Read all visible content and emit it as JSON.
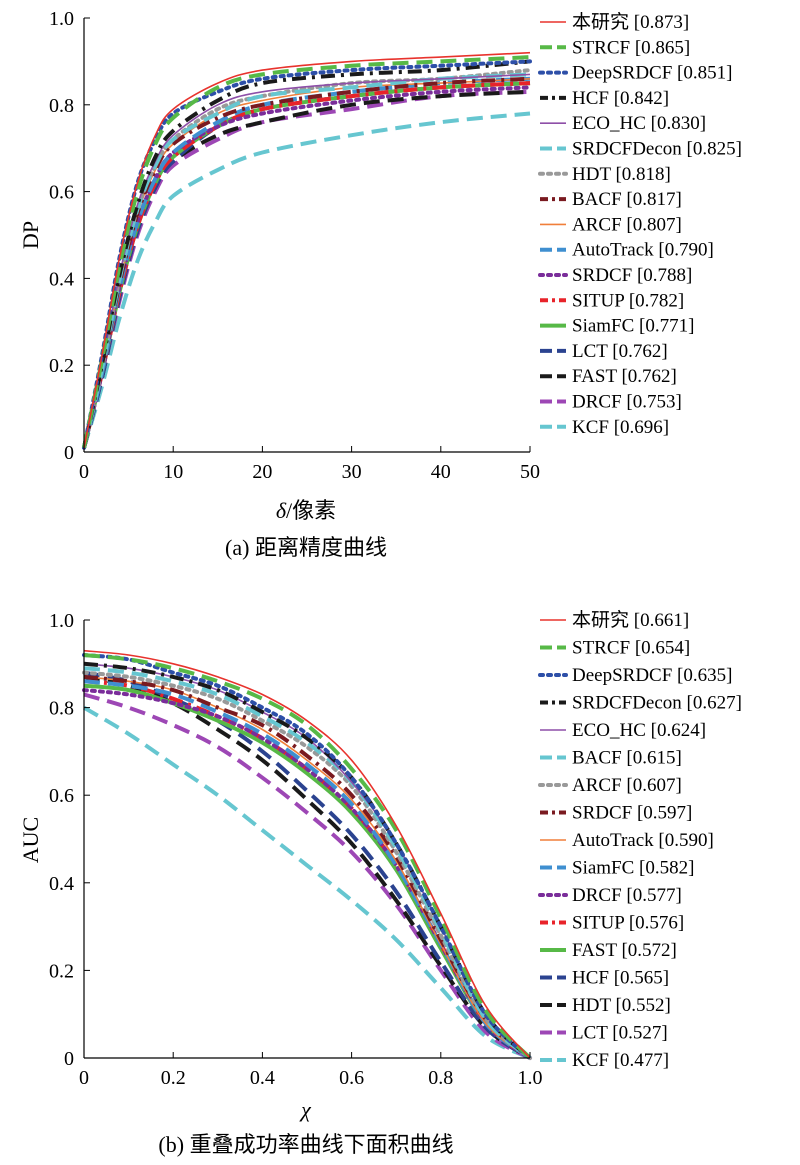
{
  "chart_data": [
    {
      "type": "line",
      "caption": "(a) 距离精度曲线",
      "ylabel": "DP",
      "xlabel_symbol": "δ",
      "xlabel_rest": "/像素",
      "xlim": [
        0,
        50
      ],
      "ylim": [
        0,
        1
      ],
      "xticks": [
        0,
        10,
        20,
        30,
        40,
        50
      ],
      "yticks": [
        0,
        0.2,
        0.4,
        0.6,
        0.8,
        1.0
      ],
      "xtick_labels": [
        "0",
        "10",
        "20",
        "30",
        "40",
        "50"
      ],
      "ytick_labels": [
        "0",
        "0.2",
        "0.4",
        "0.6",
        "0.8",
        "1.0"
      ],
      "x": [
        0,
        2,
        4,
        6,
        8,
        10,
        15,
        20,
        30,
        40,
        50
      ],
      "legend_position": "right",
      "series": [
        {
          "name": "本研究 [0.873]",
          "color": "#e8332d",
          "style": "solid",
          "y": [
            0.01,
            0.22,
            0.45,
            0.62,
            0.73,
            0.79,
            0.85,
            0.88,
            0.9,
            0.91,
            0.92
          ]
        },
        {
          "name": "STRCF [0.865]",
          "color": "#57b947",
          "style": "dashed",
          "y": [
            0.01,
            0.21,
            0.43,
            0.6,
            0.71,
            0.77,
            0.84,
            0.87,
            0.89,
            0.9,
            0.91
          ]
        },
        {
          "name": "DeepSRDCF [0.851]",
          "color": "#2d4fa8",
          "style": "dotted",
          "y": [
            0.01,
            0.22,
            0.45,
            0.62,
            0.72,
            0.78,
            0.83,
            0.86,
            0.88,
            0.89,
            0.9
          ]
        },
        {
          "name": "HCF [0.842]",
          "color": "#1a1a1a",
          "style": "dashdot",
          "y": [
            0.01,
            0.2,
            0.41,
            0.57,
            0.68,
            0.74,
            0.81,
            0.85,
            0.87,
            0.88,
            0.9
          ]
        },
        {
          "name": "ECO_HC [0.830]",
          "color": "#8e4fa8",
          "style": "solid",
          "y": [
            0.01,
            0.2,
            0.41,
            0.57,
            0.67,
            0.73,
            0.8,
            0.83,
            0.85,
            0.86,
            0.87
          ]
        },
        {
          "name": "SRDCFDecon [0.825]",
          "color": "#66c6d0",
          "style": "dashed",
          "y": [
            0.01,
            0.19,
            0.4,
            0.56,
            0.66,
            0.72,
            0.78,
            0.82,
            0.84,
            0.86,
            0.87
          ]
        },
        {
          "name": "HDT [0.818]",
          "color": "#999999",
          "style": "dotted",
          "y": [
            0.01,
            0.19,
            0.4,
            0.56,
            0.66,
            0.72,
            0.79,
            0.82,
            0.85,
            0.86,
            0.88
          ]
        },
        {
          "name": "BACF [0.817]",
          "color": "#7a1a20",
          "style": "dashdot",
          "y": [
            0.01,
            0.19,
            0.39,
            0.55,
            0.65,
            0.71,
            0.77,
            0.8,
            0.83,
            0.85,
            0.86
          ]
        },
        {
          "name": "ARCF [0.807]",
          "color": "#f07f3a",
          "style": "solid",
          "y": [
            0.01,
            0.19,
            0.39,
            0.55,
            0.65,
            0.71,
            0.78,
            0.81,
            0.84,
            0.85,
            0.86
          ]
        },
        {
          "name": "AutoTrack [0.790]",
          "color": "#3f8fd0",
          "style": "dashed",
          "y": [
            0.01,
            0.18,
            0.38,
            0.53,
            0.63,
            0.69,
            0.76,
            0.8,
            0.83,
            0.85,
            0.86
          ]
        },
        {
          "name": "SRDCF [0.788]",
          "color": "#7a2d9a",
          "style": "dotted",
          "y": [
            0.01,
            0.18,
            0.38,
            0.53,
            0.63,
            0.69,
            0.75,
            0.78,
            0.81,
            0.83,
            0.84
          ]
        },
        {
          "name": "SITUP [0.782]",
          "color": "#e8232a",
          "style": "dashdot",
          "y": [
            0.01,
            0.18,
            0.37,
            0.52,
            0.62,
            0.68,
            0.75,
            0.79,
            0.82,
            0.84,
            0.85
          ]
        },
        {
          "name": "SiamFC [0.771]",
          "color": "#57b947",
          "style": "solid-thick",
          "y": [
            0.01,
            0.18,
            0.37,
            0.52,
            0.62,
            0.68,
            0.75,
            0.79,
            0.82,
            0.84,
            0.85
          ]
        },
        {
          "name": "LCT [0.762]",
          "color": "#2b4390",
          "style": "dashed",
          "y": [
            0.01,
            0.17,
            0.36,
            0.51,
            0.61,
            0.67,
            0.75,
            0.79,
            0.82,
            0.84,
            0.85
          ]
        },
        {
          "name": "FAST [0.762]",
          "color": "#1a1a1a",
          "style": "dashed",
          "y": [
            0.01,
            0.17,
            0.36,
            0.51,
            0.61,
            0.67,
            0.73,
            0.76,
            0.8,
            0.82,
            0.83
          ]
        },
        {
          "name": "DRCF [0.753]",
          "color": "#9d47b5",
          "style": "dashed",
          "y": [
            0.01,
            0.17,
            0.35,
            0.5,
            0.6,
            0.66,
            0.72,
            0.76,
            0.79,
            0.82,
            0.83
          ]
        },
        {
          "name": "KCF [0.696]",
          "color": "#66c6d0",
          "style": "dashed",
          "y": [
            0.01,
            0.15,
            0.31,
            0.44,
            0.53,
            0.59,
            0.65,
            0.69,
            0.73,
            0.76,
            0.78
          ]
        }
      ]
    },
    {
      "type": "line",
      "caption": "(b) 重叠成功率曲线下面积曲线",
      "ylabel": "AUC",
      "xlabel_symbol": "χ",
      "xlabel_rest": "",
      "xlim": [
        0,
        1
      ],
      "ylim": [
        0,
        1
      ],
      "xticks": [
        0,
        0.2,
        0.4,
        0.6,
        0.8,
        1.0
      ],
      "yticks": [
        0,
        0.2,
        0.4,
        0.6,
        0.8,
        1.0
      ],
      "xtick_labels": [
        "0",
        "0.2",
        "0.4",
        "0.6",
        "0.8",
        "1.0"
      ],
      "ytick_labels": [
        "0",
        "0.2",
        "0.4",
        "0.6",
        "0.8",
        "1.0"
      ],
      "x": [
        0,
        0.1,
        0.2,
        0.3,
        0.4,
        0.5,
        0.6,
        0.7,
        0.8,
        0.9,
        1.0
      ],
      "legend_position": "right",
      "series": [
        {
          "name": "本研究 [0.661]",
          "color": "#e8332d",
          "style": "solid",
          "y": [
            0.93,
            0.92,
            0.9,
            0.87,
            0.83,
            0.77,
            0.68,
            0.53,
            0.33,
            0.12,
            0.0
          ]
        },
        {
          "name": "STRCF [0.654]",
          "color": "#57b947",
          "style": "dashed",
          "y": [
            0.92,
            0.91,
            0.89,
            0.86,
            0.82,
            0.76,
            0.66,
            0.52,
            0.32,
            0.11,
            0.0
          ]
        },
        {
          "name": "DeepSRDCF [0.635]",
          "color": "#2d4fa8",
          "style": "dotted",
          "y": [
            0.92,
            0.91,
            0.88,
            0.85,
            0.8,
            0.74,
            0.64,
            0.49,
            0.3,
            0.1,
            0.0
          ]
        },
        {
          "name": "SRDCFDecon [0.627]",
          "color": "#1a1a1a",
          "style": "dashdot",
          "y": [
            0.9,
            0.89,
            0.87,
            0.84,
            0.79,
            0.73,
            0.64,
            0.49,
            0.3,
            0.1,
            0.0
          ]
        },
        {
          "name": "ECO_HC [0.624]",
          "color": "#8e4fa8",
          "style": "solid",
          "y": [
            0.9,
            0.89,
            0.87,
            0.84,
            0.79,
            0.73,
            0.63,
            0.49,
            0.3,
            0.1,
            0.0
          ]
        },
        {
          "name": "BACF [0.615]",
          "color": "#66c6d0",
          "style": "dashed",
          "y": [
            0.89,
            0.88,
            0.86,
            0.83,
            0.78,
            0.72,
            0.63,
            0.48,
            0.29,
            0.09,
            0.0
          ]
        },
        {
          "name": "ARCF [0.607]",
          "color": "#999999",
          "style": "dotted",
          "y": [
            0.88,
            0.87,
            0.85,
            0.82,
            0.77,
            0.71,
            0.62,
            0.47,
            0.28,
            0.09,
            0.0
          ]
        },
        {
          "name": "SRDCF [0.597]",
          "color": "#7a1a20",
          "style": "dashdot",
          "y": [
            0.87,
            0.86,
            0.84,
            0.8,
            0.76,
            0.69,
            0.6,
            0.46,
            0.27,
            0.09,
            0.0
          ]
        },
        {
          "name": "AutoTrack [0.590]",
          "color": "#f07f3a",
          "style": "solid",
          "y": [
            0.87,
            0.86,
            0.84,
            0.8,
            0.75,
            0.68,
            0.59,
            0.45,
            0.26,
            0.08,
            0.0
          ]
        },
        {
          "name": "SiamFC [0.582]",
          "color": "#3f8fd0",
          "style": "dashed",
          "y": [
            0.86,
            0.85,
            0.83,
            0.79,
            0.74,
            0.67,
            0.58,
            0.44,
            0.26,
            0.08,
            0.0
          ]
        },
        {
          "name": "DRCF [0.577]",
          "color": "#7a2d9a",
          "style": "dotted",
          "y": [
            0.84,
            0.83,
            0.81,
            0.78,
            0.73,
            0.66,
            0.57,
            0.44,
            0.26,
            0.08,
            0.0
          ]
        },
        {
          "name": "SITUP [0.576]",
          "color": "#e8232a",
          "style": "dashdot",
          "y": [
            0.86,
            0.85,
            0.82,
            0.78,
            0.73,
            0.66,
            0.57,
            0.44,
            0.26,
            0.08,
            0.0
          ]
        },
        {
          "name": "FAST [0.572]",
          "color": "#57b947",
          "style": "solid-thick",
          "y": [
            0.85,
            0.84,
            0.81,
            0.77,
            0.72,
            0.65,
            0.56,
            0.43,
            0.25,
            0.08,
            0.0
          ]
        },
        {
          "name": "HCF [0.565]",
          "color": "#2b4390",
          "style": "dashed",
          "y": [
            0.88,
            0.86,
            0.82,
            0.77,
            0.7,
            0.61,
            0.51,
            0.38,
            0.22,
            0.07,
            0.0
          ]
        },
        {
          "name": "HDT [0.552]",
          "color": "#1a1a1a",
          "style": "dashed",
          "y": [
            0.87,
            0.85,
            0.81,
            0.75,
            0.68,
            0.59,
            0.49,
            0.36,
            0.21,
            0.07,
            0.0
          ]
        },
        {
          "name": "LCT [0.527]",
          "color": "#9d47b5",
          "style": "dashed",
          "y": [
            0.83,
            0.8,
            0.76,
            0.71,
            0.64,
            0.56,
            0.47,
            0.35,
            0.2,
            0.06,
            0.0
          ]
        },
        {
          "name": "KCF [0.477]",
          "color": "#66c6d0",
          "style": "dashed",
          "y": [
            0.8,
            0.74,
            0.67,
            0.6,
            0.52,
            0.44,
            0.36,
            0.27,
            0.16,
            0.05,
            0.0
          ]
        }
      ]
    }
  ]
}
